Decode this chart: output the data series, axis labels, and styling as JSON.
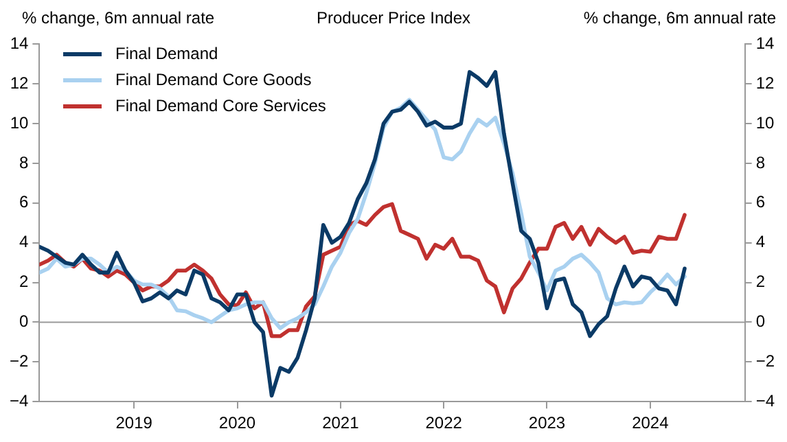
{
  "chart_data": {
    "type": "line",
    "title": "Producer Price Index",
    "ylabel": "% change, 6m annual rate",
    "y2label": "% change, 6m annual rate",
    "x": [
      "2018-02",
      "2018-03",
      "2018-04",
      "2018-05",
      "2018-06",
      "2018-07",
      "2018-08",
      "2018-09",
      "2018-10",
      "2018-11",
      "2018-12",
      "2019-01",
      "2019-02",
      "2019-03",
      "2019-04",
      "2019-05",
      "2019-06",
      "2019-07",
      "2019-08",
      "2019-09",
      "2019-10",
      "2019-11",
      "2019-12",
      "2020-01",
      "2020-02",
      "2020-03",
      "2020-04",
      "2020-05",
      "2020-06",
      "2020-07",
      "2020-08",
      "2020-09",
      "2020-10",
      "2020-11",
      "2020-12",
      "2021-01",
      "2021-02",
      "2021-03",
      "2021-04",
      "2021-05",
      "2021-06",
      "2021-07",
      "2021-08",
      "2021-09",
      "2021-10",
      "2021-11",
      "2021-12",
      "2022-01",
      "2022-02",
      "2022-03",
      "2022-04",
      "2022-05",
      "2022-06",
      "2022-07",
      "2022-08",
      "2022-09",
      "2022-10",
      "2022-11",
      "2022-12",
      "2023-01",
      "2023-02",
      "2023-03",
      "2023-04",
      "2023-05",
      "2023-06",
      "2023-07",
      "2023-08",
      "2023-09",
      "2023-10",
      "2023-11",
      "2023-12",
      "2024-01",
      "2024-02",
      "2024-03",
      "2024-04",
      "2024-05"
    ],
    "series": [
      {
        "name": "Final Demand",
        "color": "#0b3a66",
        "values": [
          3.8,
          3.6,
          3.3,
          3.0,
          2.9,
          3.4,
          2.9,
          2.5,
          2.5,
          3.5,
          2.6,
          2.0,
          1.05,
          1.2,
          1.5,
          1.2,
          1.6,
          1.4,
          2.6,
          2.4,
          1.2,
          1.0,
          0.6,
          1.4,
          1.4,
          0.0,
          -0.5,
          -3.7,
          -2.3,
          -2.5,
          -1.8,
          -0.4,
          1.2,
          4.9,
          4.0,
          4.3,
          5.0,
          6.2,
          7.0,
          8.2,
          10.0,
          10.6,
          10.7,
          11.1,
          10.6,
          9.9,
          10.1,
          9.8,
          9.8,
          10.0,
          12.6,
          12.3,
          11.9,
          12.6,
          9.5,
          7.0,
          4.6,
          4.2,
          3.0,
          0.7,
          2.1,
          2.2,
          0.9,
          0.5,
          -0.7,
          -0.1,
          0.3,
          1.7,
          2.8,
          1.8,
          2.3,
          2.2,
          1.7,
          1.6,
          0.9,
          2.7
        ]
      },
      {
        "name": "Final Demand Core Goods",
        "color": "#a9d1f0",
        "values": [
          2.5,
          2.7,
          3.2,
          2.8,
          2.9,
          3.2,
          3.2,
          2.9,
          2.5,
          2.8,
          2.6,
          2.1,
          1.9,
          1.9,
          1.7,
          1.3,
          0.6,
          0.55,
          0.35,
          0.2,
          0.0,
          0.3,
          0.6,
          0.7,
          0.9,
          1.0,
          1.0,
          0.2,
          -0.3,
          0.0,
          0.2,
          0.5,
          0.9,
          1.8,
          2.8,
          3.5,
          4.5,
          5.2,
          6.5,
          8.0,
          9.8,
          10.6,
          10.8,
          11.2,
          10.7,
          10.2,
          9.7,
          8.3,
          8.2,
          8.6,
          9.5,
          10.2,
          9.9,
          10.3,
          9.0,
          7.5,
          5.5,
          3.3,
          2.5,
          1.6,
          2.6,
          2.8,
          3.2,
          3.4,
          3.0,
          2.5,
          1.2,
          0.9,
          1.0,
          0.95,
          1.0,
          1.5,
          1.9,
          2.4,
          1.9,
          2.3
        ]
      },
      {
        "name": "Final Demand Core Services",
        "color": "#c0312f",
        "values": [
          2.9,
          3.1,
          3.4,
          3.0,
          2.8,
          3.2,
          2.7,
          2.6,
          2.3,
          2.6,
          2.4,
          2.0,
          1.6,
          1.8,
          1.8,
          2.1,
          2.6,
          2.6,
          2.9,
          2.6,
          2.2,
          1.4,
          0.9,
          0.85,
          1.5,
          0.7,
          1.0,
          -0.7,
          -0.7,
          -0.4,
          -0.4,
          0.8,
          1.3,
          3.4,
          3.6,
          3.8,
          4.9,
          5.1,
          4.9,
          5.4,
          5.8,
          5.95,
          4.6,
          4.4,
          4.2,
          3.2,
          3.9,
          3.7,
          4.2,
          3.3,
          3.3,
          3.1,
          2.1,
          1.8,
          0.5,
          1.7,
          2.2,
          3.0,
          3.7,
          3.7,
          4.8,
          5.0,
          4.2,
          4.8,
          3.9,
          4.7,
          4.3,
          4.0,
          4.3,
          3.5,
          3.6,
          3.55,
          4.3,
          4.2,
          4.2,
          5.4
        ]
      }
    ],
    "xlim": [
      "2018-02",
      "2024-12"
    ],
    "xticks": [
      "2019",
      "2020",
      "2021",
      "2022",
      "2023",
      "2024"
    ],
    "ylim": [
      -4,
      14
    ],
    "yticks": [
      {
        "value": -4,
        "label": "−4"
      },
      {
        "value": -2,
        "label": "−2"
      },
      0,
      2,
      4,
      6,
      8,
      10,
      12,
      14
    ],
    "y2lim": [
      -4,
      14
    ],
    "y2ticks": [
      {
        "value": -4,
        "label": "−4"
      },
      {
        "value": -2,
        "label": "−2"
      },
      0,
      2,
      4,
      6,
      8,
      10,
      12,
      14
    ],
    "ref_lines": [
      {
        "axis": "y",
        "value": 0,
        "color": "#999999"
      }
    ],
    "grid": false,
    "legend": "top left",
    "marker": "none",
    "line_style": "solid"
  }
}
